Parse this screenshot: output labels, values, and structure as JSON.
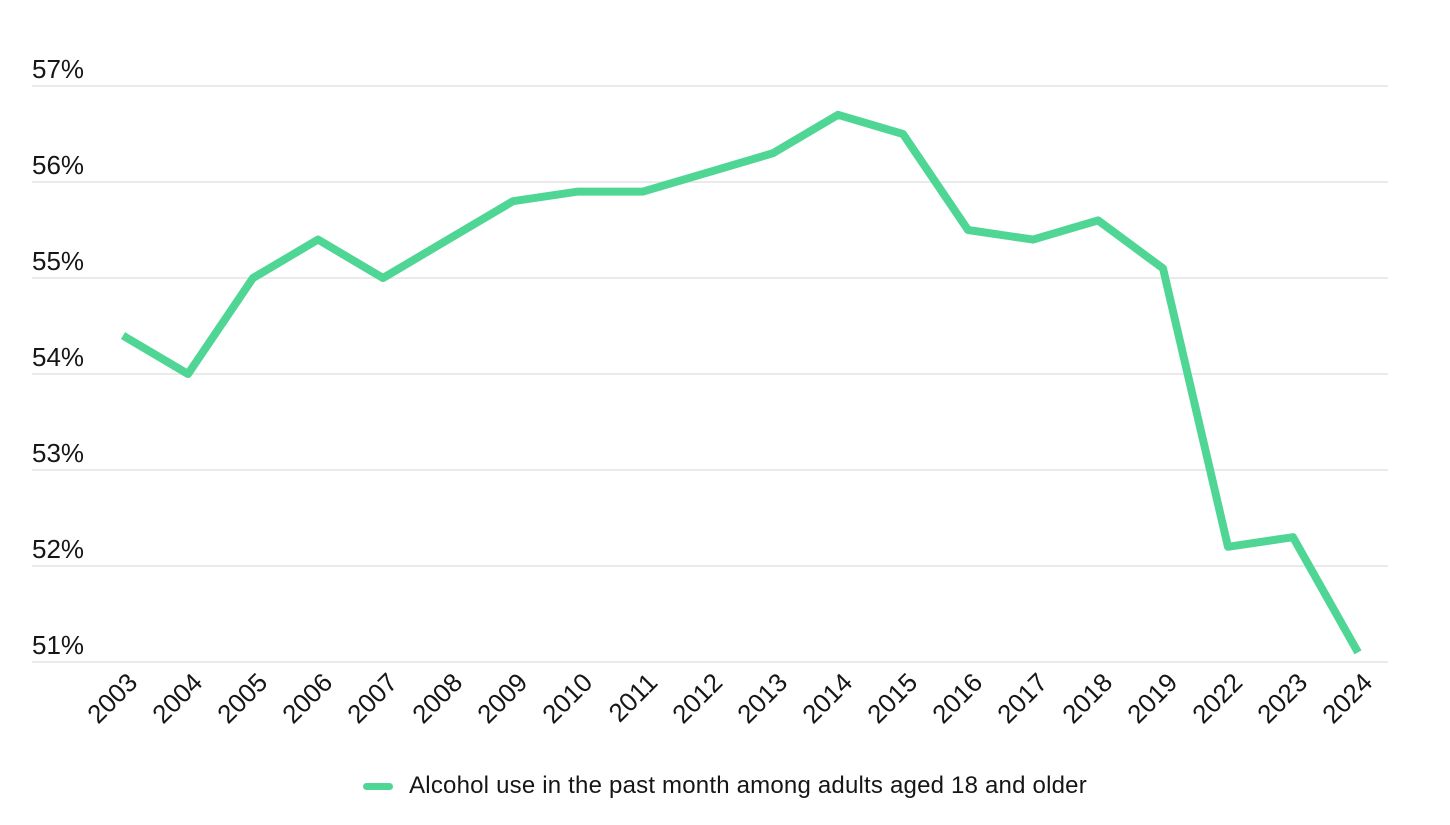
{
  "chart_data": {
    "type": "line",
    "title": "",
    "xlabel": "",
    "ylabel": "",
    "categories": [
      "2003",
      "2004",
      "2005",
      "2006",
      "2007",
      "2008",
      "2009",
      "2010",
      "2011",
      "2012",
      "2013",
      "2014",
      "2015",
      "2016",
      "2017",
      "2018",
      "2019",
      "2022",
      "2023",
      "2024"
    ],
    "series": [
      {
        "name": "Alcohol use in the past month among adults aged 18 and older",
        "values": [
          54.4,
          54.0,
          55.0,
          55.4,
          55.0,
          55.4,
          55.8,
          55.9,
          55.9,
          56.1,
          56.3,
          56.7,
          56.5,
          55.5,
          55.4,
          55.6,
          55.1,
          52.2,
          52.3,
          51.1
        ]
      }
    ],
    "ylim": [
      51,
      57
    ],
    "y_tick_step": 1,
    "y_tick_suffix": "%",
    "y_tick_labels": [
      "51%",
      "52%",
      "53%",
      "54%",
      "55%",
      "56%",
      "57%"
    ],
    "grid": "horizontal",
    "legend_position": "bottom-center",
    "colors": {
      "line": "#4fd695",
      "grid": "#e4e4e4",
      "text": "#161616",
      "background": "#ffffff"
    }
  }
}
